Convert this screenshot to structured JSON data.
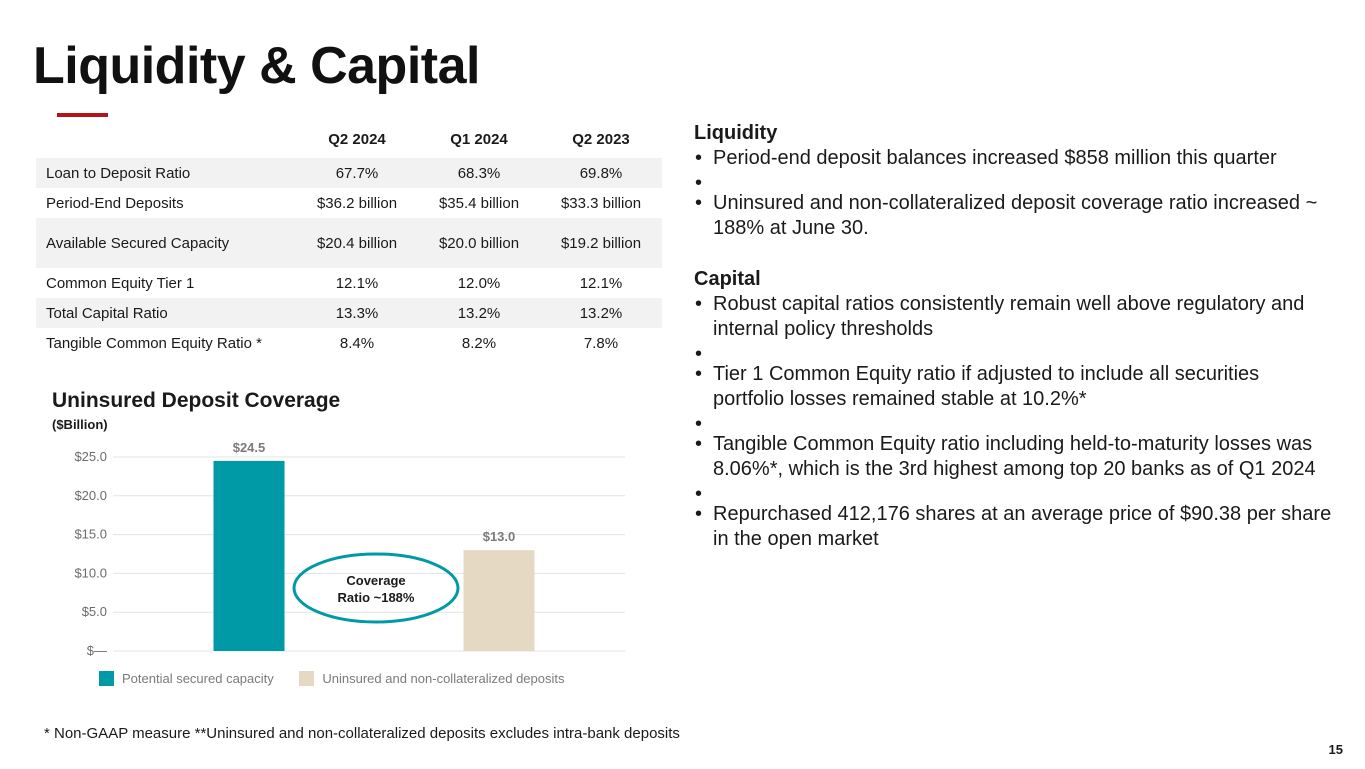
{
  "slide": {
    "title": "Liquidity & Capital",
    "page_number": "15",
    "accent_color": "#b5121b",
    "footnote": "*   Non-GAAP measure  **Uninsured and non-collateralized deposits excludes intra-bank deposits"
  },
  "table": {
    "headers": [
      "Q2 2024",
      "Q1 2024",
      "Q2 2023"
    ],
    "rows": [
      {
        "label": "Loan to Deposit Ratio",
        "values": [
          "67.7%",
          "68.3%",
          "69.8%"
        ]
      },
      {
        "label": "Period-End Deposits",
        "values": [
          "$36.2 billion",
          "$35.4 billion",
          "$33.3 billion"
        ]
      },
      {
        "label": "Available Secured Capacity",
        "values": [
          "$20.4 billion",
          "$20.0 billion",
          "$19.2 billion"
        ]
      },
      {
        "label": "Common Equity Tier 1",
        "values": [
          "12.1%",
          "12.0%",
          "12.1%"
        ]
      },
      {
        "label": "Total Capital Ratio",
        "values": [
          "13.3%",
          "13.2%",
          "13.2%"
        ]
      },
      {
        "label": "Tangible Common Equity Ratio *",
        "values": [
          "8.4%",
          "8.2%",
          "7.8%"
        ]
      }
    ]
  },
  "chart_data": {
    "type": "bar",
    "title": "Uninsured Deposit Coverage",
    "subtitle": "($Billion)",
    "categories": [
      "Potential secured capacity",
      "Uninsured and non-collateralized deposits"
    ],
    "values": [
      24.5,
      13.0
    ],
    "data_labels": [
      "$24.5",
      "$13.0"
    ],
    "colors": [
      "#009aa6",
      "#e6d9c3"
    ],
    "ylim": [
      0,
      25
    ],
    "yticks": [
      0,
      5,
      10,
      15,
      20,
      25
    ],
    "ytick_labels": [
      "$—",
      "$5.0",
      "$10.0",
      "$15.0",
      "$20.0",
      "$25.0"
    ],
    "grid": true,
    "legend": "bottom",
    "annotation": {
      "lines": [
        "Coverage",
        "Ratio ~188%"
      ],
      "color": "#009aa6"
    }
  },
  "commentary": {
    "sections": [
      {
        "heading": "Liquidity",
        "bullets": [
          "Period-end deposit balances increased $858 million this quarter",
          "Uninsured and non-collateralized deposit coverage ratio increased ~ 188% at June 30."
        ]
      },
      {
        "heading": "Capital",
        "bullets": [
          "Robust capital ratios consistently remain well above regulatory and internal policy thresholds",
          "Tier 1 Common Equity ratio if adjusted to include all securities portfolio losses remained stable at 10.2%*",
          "Tangible Common Equity ratio including held-to-maturity losses was 8.06%*, which is the 3rd highest among top 20 banks as of Q1 2024",
          "Repurchased 412,176 shares at an average price of $90.38 per share in the open market"
        ]
      }
    ]
  }
}
